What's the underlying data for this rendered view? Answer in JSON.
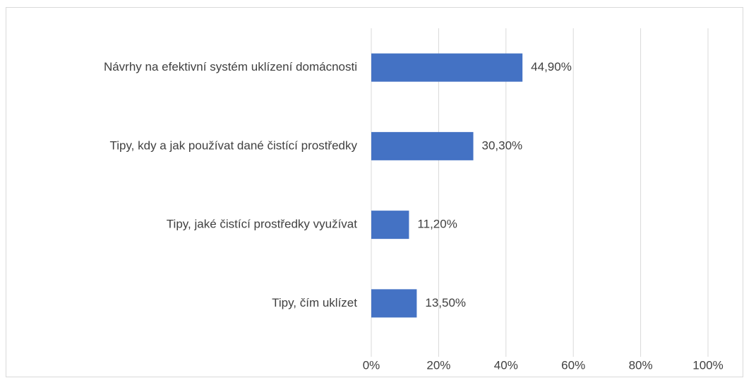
{
  "chart_data": {
    "type": "bar",
    "orientation": "horizontal",
    "categories": [
      "Návrhy na efektivní systém uklízení domácnosti",
      "Tipy, kdy a jak používat dané čistící prostředky",
      "Tipy, jaké čistící prostředky využívat",
      "Tipy, čím uklízet"
    ],
    "values": [
      44.9,
      30.3,
      11.2,
      13.5
    ],
    "value_labels": [
      "44,90%",
      "30,30%",
      "11,20%",
      "13,50%"
    ],
    "color": "#4472c4",
    "xlim": [
      0,
      100
    ],
    "xticks": [
      {
        "value": 0,
        "label": "0%"
      },
      {
        "value": 20,
        "label": "20%"
      },
      {
        "value": 40,
        "label": "40%"
      },
      {
        "value": 60,
        "label": "60%"
      },
      {
        "value": 80,
        "label": "80%"
      },
      {
        "value": 100,
        "label": "100%"
      }
    ],
    "grid": true
  }
}
